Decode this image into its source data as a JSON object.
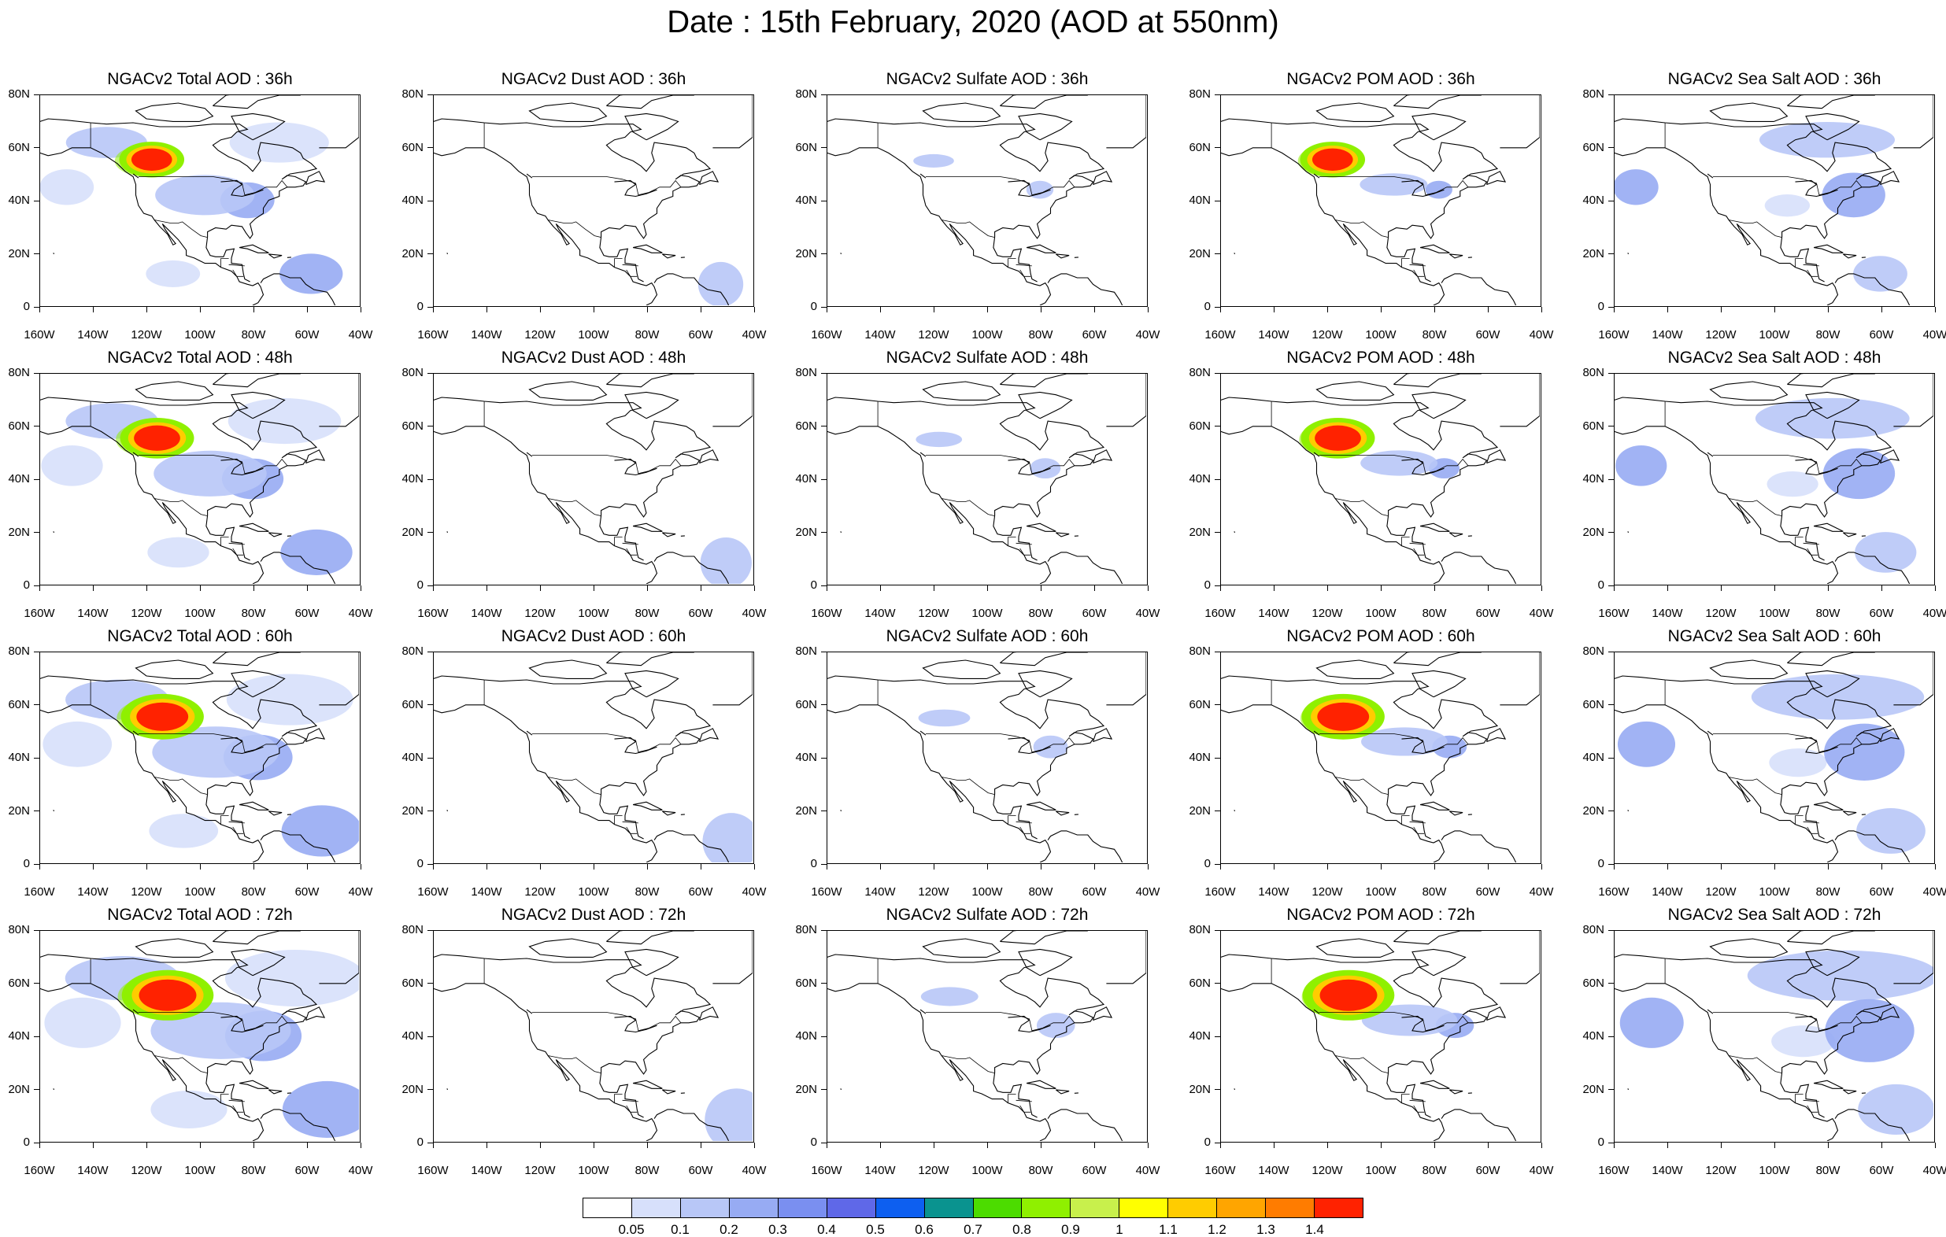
{
  "title": "Date : 15th February, 2020 (AOD at 550nm)",
  "chart_data": {
    "type": "heatmap",
    "title": "Date : 15th February, 2020 (AOD at 550nm)",
    "domain": {
      "lon_range": [
        -160,
        -40
      ],
      "lat_range": [
        0,
        80
      ]
    },
    "lat_ticks": [
      "80N",
      "60N",
      "40N",
      "20N",
      "0"
    ],
    "lon_ticks": [
      "160W",
      "140W",
      "120W",
      "100W",
      "80W",
      "60W",
      "40W"
    ],
    "legend_placement": "bottom-center",
    "panels": [
      {
        "title": "NGACv2 Total AOD : 36h",
        "species": "total",
        "hour": 36
      },
      {
        "title": "NGACv2 Dust AOD : 36h",
        "species": "dust",
        "hour": 36
      },
      {
        "title": "NGACv2 Sulfate AOD : 36h",
        "species": "sulfate",
        "hour": 36
      },
      {
        "title": "NGACv2 POM AOD : 36h",
        "species": "pom",
        "hour": 36
      },
      {
        "title": "NGACv2 Sea Salt AOD : 36h",
        "species": "seasalt",
        "hour": 36
      },
      {
        "title": "NGACv2 Total AOD : 48h",
        "species": "total",
        "hour": 48
      },
      {
        "title": "NGACv2 Dust AOD : 48h",
        "species": "dust",
        "hour": 48
      },
      {
        "title": "NGACv2 Sulfate AOD : 48h",
        "species": "sulfate",
        "hour": 48
      },
      {
        "title": "NGACv2 POM AOD : 48h",
        "species": "pom",
        "hour": 48
      },
      {
        "title": "NGACv2 Sea Salt AOD : 48h",
        "species": "seasalt",
        "hour": 48
      },
      {
        "title": "NGACv2 Total AOD : 60h",
        "species": "total",
        "hour": 60
      },
      {
        "title": "NGACv2 Dust AOD : 60h",
        "species": "dust",
        "hour": 60
      },
      {
        "title": "NGACv2 Sulfate AOD : 60h",
        "species": "sulfate",
        "hour": 60
      },
      {
        "title": "NGACv2 POM AOD : 60h",
        "species": "pom",
        "hour": 60
      },
      {
        "title": "NGACv2 Sea Salt AOD : 60h",
        "species": "seasalt",
        "hour": 60
      },
      {
        "title": "NGACv2 Total AOD : 72h",
        "species": "total",
        "hour": 72
      },
      {
        "title": "NGACv2 Dust AOD : 72h",
        "species": "dust",
        "hour": 72
      },
      {
        "title": "NGACv2 Sulfate AOD : 72h",
        "species": "sulfate",
        "hour": 72
      },
      {
        "title": "NGACv2 POM AOD : 72h",
        "species": "pom",
        "hour": 72
      },
      {
        "title": "NGACv2 Sea Salt  AOD : 72h",
        "species": "seasalt",
        "hour": 72
      }
    ],
    "colorbar": {
      "labels": [
        "0.05",
        "0.1",
        "0.2",
        "0.3",
        "0.4",
        "0.5",
        "0.6",
        "0.7",
        "0.8",
        "0.9",
        "1",
        "1.1",
        "1.2",
        "1.3",
        "1.4"
      ],
      "colors": [
        "#ffffff",
        "#d7e0fb",
        "#b8c7f7",
        "#97abf3",
        "#7a8ff0",
        "#5f68e8",
        "#0d5ff0",
        "#0a938f",
        "#4cdc00",
        "#8ff000",
        "#c8f04c",
        "#ffff00",
        "#ffcc00",
        "#ffa500",
        "#ff7c00",
        "#ff2200"
      ]
    }
  }
}
